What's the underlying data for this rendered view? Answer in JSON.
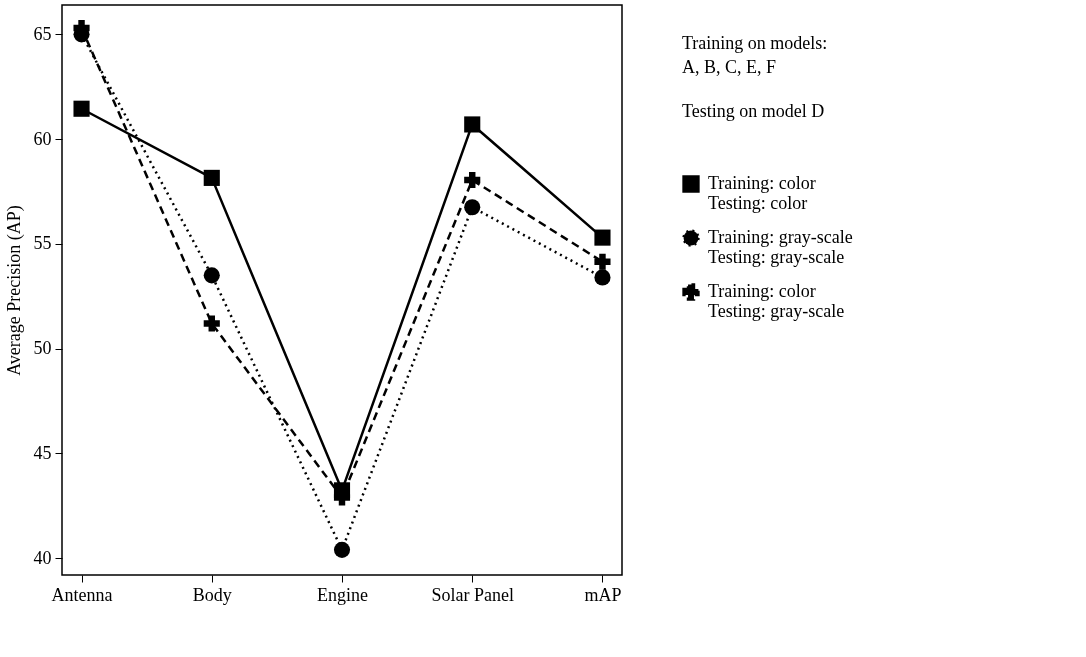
{
  "chart_data": {
    "type": "line",
    "ylabel": "Average Precision (AP)",
    "categories": [
      "Antenna",
      "Body",
      "Engine",
      "Solar Panel",
      "mAP"
    ],
    "ylim": [
      39.2,
      66.4
    ],
    "yticks": [
      40,
      45,
      50,
      55,
      60,
      65
    ],
    "grid": false,
    "legend": "right",
    "annotations": [
      "Training on models:\nA, B, C, E, F",
      "Testing on model D"
    ],
    "series": [
      {
        "name": "Training: color\nTesting: color",
        "color": "#000000",
        "marker": "square",
        "line_style": "solid",
        "values": [
          61.45,
          58.15,
          43.24,
          60.7,
          55.3
        ]
      },
      {
        "name": "Training: gray-scale\nTesting: gray-scale",
        "color": "#000000",
        "marker": "circle",
        "line_style": "dotted",
        "values": [
          65.0,
          53.5,
          40.4,
          56.75,
          53.4
        ]
      },
      {
        "name": "Training: color\nTesting: gray-scale",
        "color": "#000000",
        "marker": "cross",
        "line_style": "dashed",
        "values": [
          65.3,
          51.2,
          42.9,
          58.05,
          54.15
        ]
      }
    ]
  }
}
